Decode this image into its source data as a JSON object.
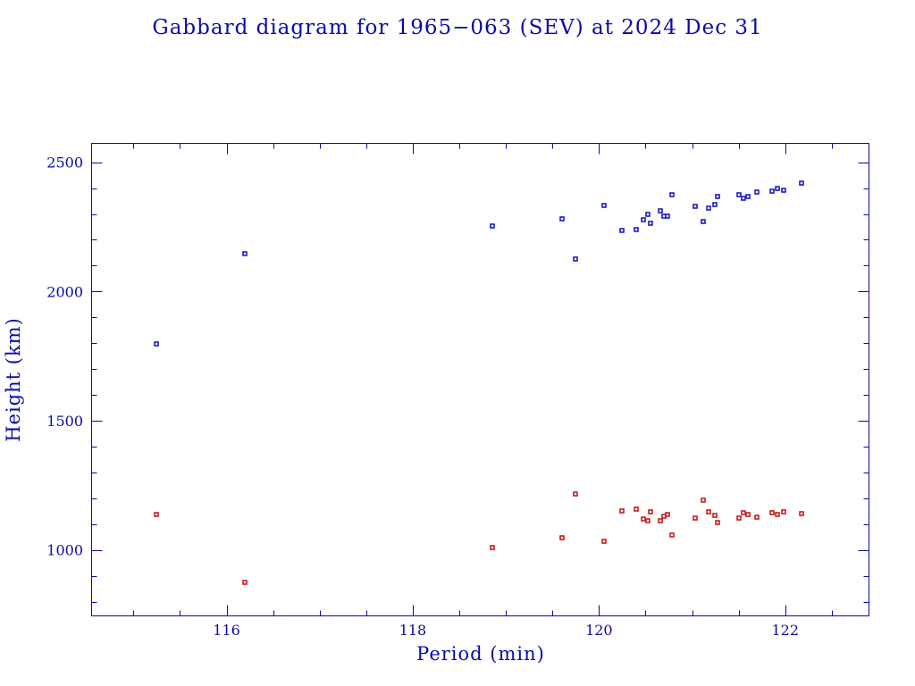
{
  "chart_data": {
    "type": "scatter",
    "title": "Gabbard diagram for 1965−063 (SEV) at 2024 Dec 31",
    "xlabel": "Period (min)",
    "ylabel": "Height (km)",
    "xlim": [
      114.55,
      122.9
    ],
    "ylim": [
      745,
      2573
    ],
    "x_ticks": [
      116,
      118,
      120,
      122
    ],
    "x_tick_labels": [
      "116",
      "118",
      "120",
      "122"
    ],
    "y_ticks": [
      1000,
      1500,
      2000,
      2500
    ],
    "y_tick_labels": [
      "1000",
      "1500",
      "2000",
      "2500"
    ],
    "grid": false,
    "series": [
      {
        "name": "",
        "color": "#1c1cc8",
        "points": [
          [
            115.25,
            1797
          ],
          [
            116.2,
            2146
          ],
          [
            118.85,
            2252
          ],
          [
            119.6,
            2280
          ],
          [
            119.75,
            2125
          ],
          [
            120.05,
            2334
          ],
          [
            120.25,
            2236
          ],
          [
            120.4,
            2238
          ],
          [
            120.48,
            2278
          ],
          [
            120.52,
            2300
          ],
          [
            120.55,
            2262
          ],
          [
            120.66,
            2313
          ],
          [
            120.7,
            2292
          ],
          [
            120.74,
            2292
          ],
          [
            120.78,
            2374
          ],
          [
            121.03,
            2330
          ],
          [
            121.12,
            2272
          ],
          [
            121.18,
            2322
          ],
          [
            121.24,
            2337
          ],
          [
            121.27,
            2367
          ],
          [
            121.5,
            2373
          ],
          [
            121.55,
            2360
          ],
          [
            121.6,
            2368
          ],
          [
            121.7,
            2385
          ],
          [
            121.86,
            2388
          ],
          [
            121.92,
            2398
          ],
          [
            121.98,
            2392
          ],
          [
            122.18,
            2418
          ]
        ]
      },
      {
        "name": "",
        "color": "#c81c1c",
        "points": [
          [
            115.25,
            1137
          ],
          [
            116.2,
            875
          ],
          [
            118.85,
            1008
          ],
          [
            119.6,
            1048
          ],
          [
            119.75,
            1217
          ],
          [
            120.05,
            1032
          ],
          [
            120.25,
            1152
          ],
          [
            120.4,
            1158
          ],
          [
            120.48,
            1121
          ],
          [
            120.52,
            1112
          ],
          [
            120.55,
            1148
          ],
          [
            120.66,
            1112
          ],
          [
            120.7,
            1131
          ],
          [
            120.74,
            1136
          ],
          [
            120.78,
            1059
          ],
          [
            121.03,
            1123
          ],
          [
            121.12,
            1192
          ],
          [
            121.18,
            1148
          ],
          [
            121.24,
            1135
          ],
          [
            121.27,
            1107
          ],
          [
            121.5,
            1122
          ],
          [
            121.55,
            1143
          ],
          [
            121.6,
            1138
          ],
          [
            121.7,
            1127
          ],
          [
            121.86,
            1143
          ],
          [
            121.92,
            1136
          ],
          [
            121.98,
            1148
          ],
          [
            122.18,
            1140
          ]
        ]
      }
    ]
  }
}
